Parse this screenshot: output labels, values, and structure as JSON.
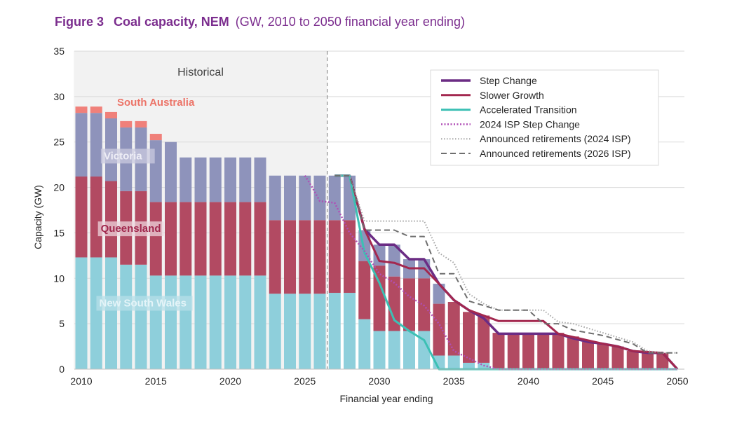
{
  "figure": {
    "number": "Figure 3",
    "title": "Coal capacity, NEM",
    "subtitle": "(GW, 2010 to 2050 financial year ending)"
  },
  "chart_data": {
    "type": "bar",
    "stacked": true,
    "xlabel": "Financial year ending",
    "ylabel": "Capacity (GW)",
    "xlim": [
      2010,
      2050
    ],
    "ylim": [
      0,
      35
    ],
    "x_ticks": [
      2010,
      2015,
      2020,
      2025,
      2030,
      2035,
      2040,
      2045,
      2050
    ],
    "y_ticks": [
      0,
      5,
      10,
      15,
      20,
      25,
      30,
      35
    ],
    "grid": "horizontal",
    "legend_position": "top-right",
    "shaded_region": {
      "label": "Historical",
      "from": 2010,
      "to": 2026.5,
      "color": "#f2f2f2"
    },
    "divider_x": 2026.5,
    "stack_order": [
      "New South Wales",
      "Queensland",
      "Victoria",
      "South Australia"
    ],
    "bars": [
      {
        "year": 2010,
        "nsw": 12.3,
        "qld": 8.9,
        "vic": 7.0,
        "sa": 0.7
      },
      {
        "year": 2011,
        "nsw": 12.3,
        "qld": 8.9,
        "vic": 7.0,
        "sa": 0.7
      },
      {
        "year": 2012,
        "nsw": 12.3,
        "qld": 8.4,
        "vic": 6.9,
        "sa": 0.7
      },
      {
        "year": 2013,
        "nsw": 11.5,
        "qld": 8.1,
        "vic": 7.0,
        "sa": 0.7
      },
      {
        "year": 2014,
        "nsw": 11.5,
        "qld": 8.1,
        "vic": 7.0,
        "sa": 0.7
      },
      {
        "year": 2015,
        "nsw": 10.3,
        "qld": 8.1,
        "vic": 6.8,
        "sa": 0.7
      },
      {
        "year": 2016,
        "nsw": 10.3,
        "qld": 8.1,
        "vic": 6.6,
        "sa": 0
      },
      {
        "year": 2017,
        "nsw": 10.3,
        "qld": 8.1,
        "vic": 4.9,
        "sa": 0
      },
      {
        "year": 2018,
        "nsw": 10.3,
        "qld": 8.1,
        "vic": 4.9,
        "sa": 0
      },
      {
        "year": 2019,
        "nsw": 10.3,
        "qld": 8.1,
        "vic": 4.9,
        "sa": 0
      },
      {
        "year": 2020,
        "nsw": 10.3,
        "qld": 8.1,
        "vic": 4.9,
        "sa": 0
      },
      {
        "year": 2021,
        "nsw": 10.3,
        "qld": 8.1,
        "vic": 4.9,
        "sa": 0
      },
      {
        "year": 2022,
        "nsw": 10.3,
        "qld": 8.1,
        "vic": 4.9,
        "sa": 0
      },
      {
        "year": 2023,
        "nsw": 8.3,
        "qld": 8.1,
        "vic": 4.9,
        "sa": 0
      },
      {
        "year": 2024,
        "nsw": 8.3,
        "qld": 8.1,
        "vic": 4.9,
        "sa": 0
      },
      {
        "year": 2025,
        "nsw": 8.3,
        "qld": 8.1,
        "vic": 4.9,
        "sa": 0
      },
      {
        "year": 2026,
        "nsw": 8.3,
        "qld": 8.1,
        "vic": 4.9,
        "sa": 0
      },
      {
        "year": 2027,
        "nsw": 8.4,
        "qld": 8.0,
        "vic": 4.9,
        "sa": 0
      },
      {
        "year": 2028,
        "nsw": 8.4,
        "qld": 8.0,
        "vic": 4.9,
        "sa": 0
      },
      {
        "year": 2029,
        "nsw": 5.5,
        "qld": 6.4,
        "vic": 3.4,
        "sa": 0
      },
      {
        "year": 2030,
        "nsw": 4.2,
        "qld": 7.2,
        "vic": 2.3,
        "sa": 0
      },
      {
        "year": 2031,
        "nsw": 4.2,
        "qld": 6.0,
        "vic": 3.5,
        "sa": 0
      },
      {
        "year": 2032,
        "nsw": 4.2,
        "qld": 5.8,
        "vic": 2.1,
        "sa": 0
      },
      {
        "year": 2033,
        "nsw": 4.2,
        "qld": 5.8,
        "vic": 2.1,
        "sa": 0
      },
      {
        "year": 2034,
        "nsw": 1.5,
        "qld": 5.7,
        "vic": 2.2,
        "sa": 0
      },
      {
        "year": 2035,
        "nsw": 1.5,
        "qld": 5.9,
        "vic": 0,
        "sa": 0
      },
      {
        "year": 2036,
        "nsw": 0.7,
        "qld": 5.6,
        "vic": 0,
        "sa": 0
      },
      {
        "year": 2037,
        "nsw": 0.7,
        "qld": 5.2,
        "vic": 0,
        "sa": 0
      },
      {
        "year": 2038,
        "nsw": 0,
        "qld": 4.0,
        "vic": 0,
        "sa": 0
      },
      {
        "year": 2039,
        "nsw": 0,
        "qld": 4.0,
        "vic": 0,
        "sa": 0
      },
      {
        "year": 2040,
        "nsw": 0,
        "qld": 4.0,
        "vic": 0,
        "sa": 0
      },
      {
        "year": 2041,
        "nsw": 0,
        "qld": 4.0,
        "vic": 0,
        "sa": 0
      },
      {
        "year": 2042,
        "nsw": 0,
        "qld": 4.0,
        "vic": 0,
        "sa": 0
      },
      {
        "year": 2043,
        "nsw": 0,
        "qld": 3.6,
        "vic": 0,
        "sa": 0
      },
      {
        "year": 2044,
        "nsw": 0,
        "qld": 3.0,
        "vic": 0,
        "sa": 0
      },
      {
        "year": 2045,
        "nsw": 0,
        "qld": 2.8,
        "vic": 0,
        "sa": 0
      },
      {
        "year": 2046,
        "nsw": 0,
        "qld": 2.5,
        "vic": 0,
        "sa": 0
      },
      {
        "year": 2047,
        "nsw": 0,
        "qld": 2.0,
        "vic": 0,
        "sa": 0
      },
      {
        "year": 2048,
        "nsw": 0,
        "qld": 1.8,
        "vic": 0,
        "sa": 0
      },
      {
        "year": 2049,
        "nsw": 0,
        "qld": 1.8,
        "vic": 0,
        "sa": 0
      }
    ],
    "region_labels": [
      {
        "name": "South Australia",
        "key": "sa",
        "color": "#f0807a",
        "text_color": "#ec7468",
        "bg": "",
        "x": 2012.4,
        "y": 29.0
      },
      {
        "name": "Victoria",
        "key": "vic",
        "color": "#8e93bb",
        "text_color": "#eeeef6",
        "bg": "#c9cadf",
        "x": 2011.5,
        "y": 23.1
      },
      {
        "name": "Queensland",
        "key": "qld",
        "color": "#b24a62",
        "text_color": "#a0284d",
        "bg": "#ecd4dc",
        "x": 2011.3,
        "y": 15.1
      },
      {
        "name": "New South Wales",
        "key": "nsw",
        "color": "#8ecfdb",
        "text_color": "#e4f4f8",
        "bg": "#b6dfe8",
        "x": 2011.2,
        "y": 6.9
      }
    ],
    "series": [
      {
        "name": "Step Change",
        "color": "#6b2c84",
        "dash": "solid",
        "width": 3.5,
        "points": [
          [
            2027,
            21.3
          ],
          [
            2028,
            21.3
          ],
          [
            2029,
            15.4
          ],
          [
            2030,
            13.7
          ],
          [
            2031,
            13.7
          ],
          [
            2032,
            12.1
          ],
          [
            2033,
            12.1
          ],
          [
            2034,
            9.4
          ],
          [
            2035,
            7.6
          ],
          [
            2036,
            6.5
          ],
          [
            2037,
            5.6
          ],
          [
            2038,
            3.9
          ],
          [
            2041,
            3.9
          ],
          [
            2042,
            3.9
          ],
          [
            2043,
            3.4
          ],
          [
            2044,
            3.0
          ],
          [
            2045,
            2.8
          ],
          [
            2046,
            2.5
          ],
          [
            2047,
            2.0
          ],
          [
            2048,
            1.8
          ],
          [
            2049,
            1.8
          ],
          [
            2050,
            0
          ]
        ]
      },
      {
        "name": "Slower Growth",
        "color": "#a3284f",
        "dash": "solid",
        "width": 3,
        "points": [
          [
            2027,
            21.3
          ],
          [
            2028,
            21.3
          ],
          [
            2029,
            15.4
          ],
          [
            2030,
            11.9
          ],
          [
            2031,
            11.7
          ],
          [
            2032,
            11.1
          ],
          [
            2033,
            11.1
          ],
          [
            2034,
            9.4
          ],
          [
            2035,
            7.6
          ],
          [
            2036,
            6.5
          ],
          [
            2037,
            5.9
          ],
          [
            2038,
            5.3
          ],
          [
            2041,
            5.3
          ],
          [
            2042,
            3.9
          ],
          [
            2045,
            2.8
          ],
          [
            2046,
            2.5
          ],
          [
            2047,
            2.0
          ],
          [
            2049,
            1.8
          ],
          [
            2050,
            0
          ]
        ]
      },
      {
        "name": "Accelerated Transition",
        "color": "#3cc0b4",
        "dash": "solid",
        "width": 3,
        "points": [
          [
            2027,
            21.3
          ],
          [
            2028,
            21.3
          ],
          [
            2029,
            12.8
          ],
          [
            2030,
            9.5
          ],
          [
            2031,
            5.4
          ],
          [
            2032,
            4.2
          ],
          [
            2033,
            3.2
          ],
          [
            2034,
            0
          ],
          [
            2050,
            0
          ]
        ]
      },
      {
        "name": "2024 ISP Step Change",
        "color": "#b04fb6",
        "dash": "2,2.5",
        "width": 2.5,
        "points": [
          [
            2025,
            21.3
          ],
          [
            2025.5,
            20.0
          ],
          [
            2026,
            18.5
          ],
          [
            2027,
            18.3
          ],
          [
            2028,
            15.0
          ],
          [
            2029,
            13.0
          ],
          [
            2030,
            10.5
          ],
          [
            2031,
            9.5
          ],
          [
            2032,
            8.0
          ],
          [
            2033,
            7.0
          ],
          [
            2034,
            5.0
          ],
          [
            2035,
            2.0
          ],
          [
            2036,
            1.2
          ],
          [
            2037,
            0.4
          ],
          [
            2038,
            0
          ],
          [
            2050,
            0
          ]
        ]
      },
      {
        "name": "Announced retirements (2024 ISP)",
        "color": "#a6a6a6",
        "dash": "1.5,2.5",
        "width": 2,
        "points": [
          [
            2027,
            21.3
          ],
          [
            2028,
            21.3
          ],
          [
            2029,
            16.3
          ],
          [
            2033,
            16.3
          ],
          [
            2034,
            12.8
          ],
          [
            2035,
            11.7
          ],
          [
            2036,
            8.3
          ],
          [
            2037,
            7.2
          ],
          [
            2038,
            6.5
          ],
          [
            2041,
            6.5
          ],
          [
            2042,
            5.2
          ],
          [
            2043,
            5.0
          ],
          [
            2044,
            4.5
          ],
          [
            2046,
            3.5
          ],
          [
            2047,
            3.0
          ],
          [
            2048,
            2.0
          ],
          [
            2049,
            1.8
          ],
          [
            2050,
            1.8
          ]
        ]
      },
      {
        "name": "Announced retirements (2026 ISP)",
        "color": "#6e6e6e",
        "dash": "8,5",
        "width": 2,
        "points": [
          [
            2027,
            21.3
          ],
          [
            2028,
            21.3
          ],
          [
            2029,
            15.3
          ],
          [
            2031,
            15.3
          ],
          [
            2032,
            14.6
          ],
          [
            2033,
            14.6
          ],
          [
            2034,
            10.5
          ],
          [
            2035,
            10.5
          ],
          [
            2036,
            7.5
          ],
          [
            2038,
            6.5
          ],
          [
            2040,
            6.5
          ],
          [
            2041,
            5.0
          ],
          [
            2042,
            5.0
          ],
          [
            2043,
            4.3
          ],
          [
            2045,
            3.7
          ],
          [
            2047,
            2.8
          ],
          [
            2048,
            1.8
          ],
          [
            2050,
            1.8
          ]
        ]
      }
    ]
  }
}
